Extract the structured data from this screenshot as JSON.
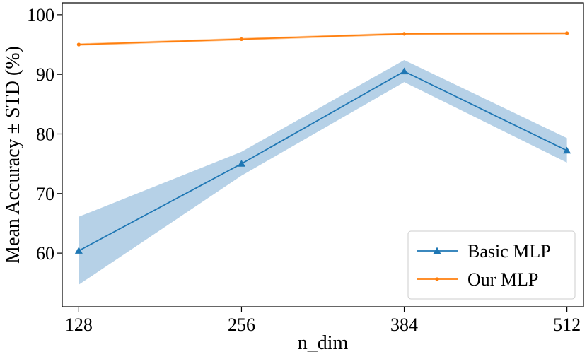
{
  "chart_data": {
    "type": "line",
    "title": "",
    "xlabel": "n_dim",
    "ylabel": "Mean Accuracy ± STD (%)",
    "categories": [
      "128",
      "256",
      "384",
      "512"
    ],
    "x": [
      128,
      256,
      384,
      512
    ],
    "xlim": [
      115,
      525
    ],
    "ylim": [
      51,
      102
    ],
    "yticks": [
      60,
      70,
      80,
      90,
      100
    ],
    "grid": false,
    "legend_position": "lower-right",
    "series": [
      {
        "name": "Basic MLP",
        "color": "#1f77b4",
        "band_color": "#a9c9e3",
        "marker": "triangle",
        "values": [
          60.4,
          75.0,
          90.5,
          77.2
        ],
        "lower": [
          54.7,
          73.0,
          88.7,
          75.2
        ],
        "upper": [
          66.1,
          77.0,
          92.4,
          79.3
        ]
      },
      {
        "name": "Our MLP",
        "color": "#ff7f0e",
        "band_color": "#ffbf86",
        "marker": "dot",
        "values": [
          95.0,
          95.9,
          96.8,
          96.9
        ],
        "lower": [
          94.8,
          95.7,
          96.6,
          96.7
        ],
        "upper": [
          95.2,
          96.1,
          97.0,
          97.1
        ]
      }
    ]
  }
}
